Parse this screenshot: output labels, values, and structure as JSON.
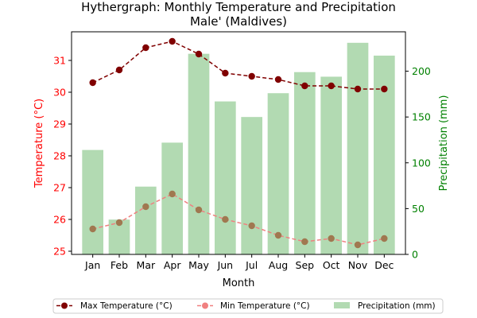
{
  "chart_data": {
    "type": "line",
    "title_line1": "Hythergraph: Monthly Temperature and Precipitation",
    "title_line2": "Male' (Maldives)",
    "xlabel": "Month",
    "ylabel_left": "Temperature (°C)",
    "ylabel_right": "Precipitation (mm)",
    "categories": [
      "Jan",
      "Feb",
      "Mar",
      "Apr",
      "May",
      "Jun",
      "Jul",
      "Aug",
      "Sep",
      "Oct",
      "Nov",
      "Dec"
    ],
    "ylim_left": [
      24.9,
      31.9
    ],
    "ylim_right": [
      0,
      243
    ],
    "yticks_left": [
      25,
      26,
      27,
      28,
      29,
      30,
      31
    ],
    "yticks_right": [
      0,
      50,
      100,
      150,
      200
    ],
    "series": [
      {
        "name": "Max Temperature (°C)",
        "axis": "left",
        "kind": "line",
        "color": "#800000",
        "dash": true,
        "values": [
          30.3,
          30.7,
          31.4,
          31.6,
          31.2,
          30.6,
          30.5,
          30.4,
          30.2,
          30.2,
          30.1,
          30.1
        ]
      },
      {
        "name": "Min Temperature (°C)",
        "axis": "left",
        "kind": "line",
        "color": "#f08080",
        "dash": true,
        "values": [
          25.7,
          25.9,
          26.4,
          26.8,
          26.3,
          26.0,
          25.8,
          25.5,
          25.3,
          25.4,
          25.2,
          25.4
        ]
      },
      {
        "name": "Precipitation (mm)",
        "axis": "right",
        "kind": "bar",
        "color": "#b2dab2",
        "values": [
          114,
          38,
          74,
          122,
          219,
          167,
          150,
          176,
          199,
          194,
          231,
          217
        ]
      }
    ],
    "legend_position": "bottom-center",
    "grid": false,
    "colors": {
      "left_axis": "#ff0000",
      "right_axis": "#008000"
    }
  }
}
